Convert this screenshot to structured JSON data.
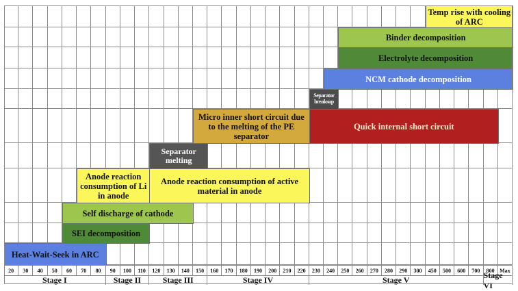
{
  "ticks": [
    "20",
    "30",
    "40",
    "50",
    "60",
    "70",
    "80",
    "90",
    "100",
    "110",
    "120",
    "130",
    "140",
    "150",
    "160",
    "170",
    "180",
    "190",
    "200",
    "210",
    "220",
    "230",
    "240",
    "250",
    "260",
    "270",
    "280",
    "290",
    "300",
    "450",
    "500",
    "600",
    "700",
    "800",
    "Max"
  ],
  "stages": [
    {
      "label": "Stage I",
      "from": 0,
      "to": 7
    },
    {
      "label": "Stage II",
      "from": 7,
      "to": 10
    },
    {
      "label": "Stage III",
      "from": 10,
      "to": 14
    },
    {
      "label": "Stage IV",
      "from": 14,
      "to": 21
    },
    {
      "label": "Stage V",
      "from": 21,
      "to": 33
    },
    {
      "label": "Stage VI",
      "from": 33,
      "to": 35
    }
  ],
  "events": [
    {
      "label": "Temp rise with cooling of ARC",
      "from": 29,
      "to": 35,
      "row": 0,
      "color": "#fbf659",
      "text_color": "#111111"
    },
    {
      "label": "Binder decomposition",
      "from": 23,
      "to": 35,
      "row": 1,
      "color": "#9cc64e",
      "text_color": "#111111"
    },
    {
      "label": "Electrolyte decomposition",
      "from": 23,
      "to": 35,
      "row": 2,
      "color": "#4f8a37",
      "text_color": "#111111"
    },
    {
      "label": "NCM cathode decomposition",
      "from": 22,
      "to": 35,
      "row": 3,
      "color": "#5b80e0",
      "text_color": "#ffffff"
    },
    {
      "label": "Separator breaksup",
      "from": 21,
      "to": 23,
      "row": 4,
      "color": "#4c4c4c",
      "text_color": "#ffffff"
    },
    {
      "label": "Micro inner short circuit due to the melting of the PE separator",
      "from": 13,
      "to": 21,
      "row": 5,
      "color": "#d3a93d",
      "text_color": "#111111"
    },
    {
      "label": "Quick internal short circuit",
      "from": 21,
      "to": 34,
      "row": 5,
      "color": "#b11f1f",
      "text_color": "#f2e7c7"
    },
    {
      "label": "Separator melting",
      "from": 10,
      "to": 14,
      "row": 6,
      "color": "#555555",
      "text_color": "#ffffff"
    },
    {
      "label": "Anode reaction consumption of Li in anode",
      "from": 5,
      "to": 10,
      "row": 7,
      "color": "#fbf659",
      "text_color": "#111111"
    },
    {
      "label": "Anode reaction consumption of active material in anode",
      "from": 10,
      "to": 21,
      "row": 7,
      "color": "#fbf659",
      "text_color": "#111111"
    },
    {
      "label": "Self discharge of cathode",
      "from": 4,
      "to": 13,
      "row": 8,
      "color": "#9cc64e",
      "text_color": "#111111"
    },
    {
      "label": "SEI decomposition",
      "from": 4,
      "to": 10,
      "row": 9,
      "color": "#4f8a37",
      "text_color": "#111111"
    },
    {
      "label": "Heat-Wait-Seek in ARC",
      "from": 0,
      "to": 7,
      "row": 10,
      "color": "#5b80e0",
      "text_color": "#111111"
    }
  ]
}
